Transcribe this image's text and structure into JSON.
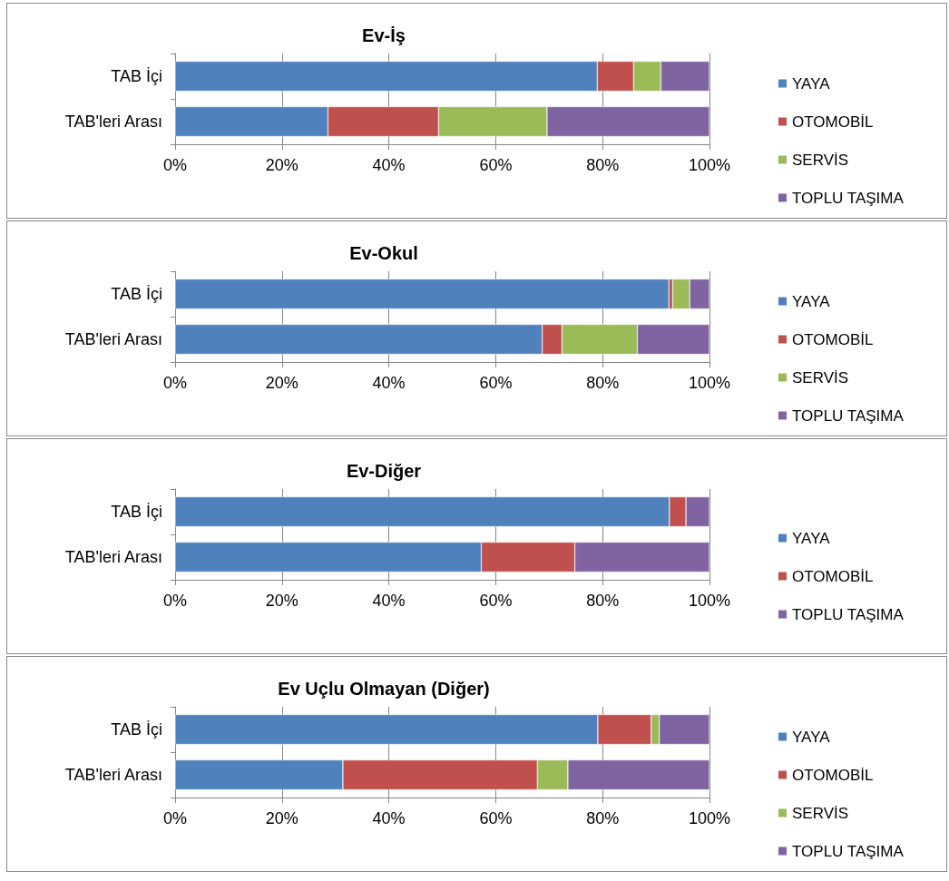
{
  "chart_data": [
    {
      "type": "bar",
      "orientation": "horizontal",
      "stacked": true,
      "title": "Ev-İş",
      "categories": [
        "TAB İçi",
        "TAB'leri Arası"
      ],
      "xlim": [
        0,
        100
      ],
      "xticks": [
        {
          "value": 0,
          "label": "0%"
        },
        {
          "value": 20,
          "label": "20%"
        },
        {
          "value": 40,
          "label": "40%"
        },
        {
          "value": 60,
          "label": "60%"
        },
        {
          "value": 80,
          "label": "80%"
        },
        {
          "value": 100,
          "label": "100%"
        }
      ],
      "grid": "x",
      "legend": "right",
      "series": [
        {
          "name": "YAYA",
          "color": "#4f81bd",
          "values": [
            79.0,
            28.6
          ]
        },
        {
          "name": "OTOMOBİL",
          "color": "#c0504d",
          "values": [
            6.8,
            20.7
          ]
        },
        {
          "name": "SERVİS",
          "color": "#9bbb59",
          "values": [
            5.1,
            20.3
          ]
        },
        {
          "name": "TOPLU TAŞIMA",
          "color": "#8064a2",
          "values": [
            9.1,
            30.4
          ]
        }
      ]
    },
    {
      "type": "bar",
      "orientation": "horizontal",
      "stacked": true,
      "title": "Ev-Okul",
      "categories": [
        "TAB İçi",
        "TAB'leri Arası"
      ],
      "xlim": [
        0,
        100
      ],
      "xticks": [
        {
          "value": 0,
          "label": "0%"
        },
        {
          "value": 20,
          "label": "20%"
        },
        {
          "value": 40,
          "label": "40%"
        },
        {
          "value": 60,
          "label": "60%"
        },
        {
          "value": 80,
          "label": "80%"
        },
        {
          "value": 100,
          "label": "100%"
        }
      ],
      "grid": "x",
      "legend": "right",
      "series": [
        {
          "name": "YAYA",
          "color": "#4f81bd",
          "values": [
            92.4,
            68.7
          ]
        },
        {
          "name": "OTOMOBİL",
          "color": "#c0504d",
          "values": [
            0.7,
            3.7
          ]
        },
        {
          "name": "SERVİS",
          "color": "#9bbb59",
          "values": [
            3.2,
            14.1
          ]
        },
        {
          "name": "TOPLU TAŞIMA",
          "color": "#8064a2",
          "values": [
            3.7,
            13.5
          ]
        }
      ]
    },
    {
      "type": "bar",
      "orientation": "horizontal",
      "stacked": true,
      "title": "Ev-Diğer",
      "categories": [
        "TAB İçi",
        "TAB'leri Arası"
      ],
      "xlim": [
        0,
        100
      ],
      "xticks": [
        {
          "value": 0,
          "label": "0%"
        },
        {
          "value": 20,
          "label": "20%"
        },
        {
          "value": 40,
          "label": "40%"
        },
        {
          "value": 60,
          "label": "60%"
        },
        {
          "value": 80,
          "label": "80%"
        },
        {
          "value": 100,
          "label": "100%"
        }
      ],
      "grid": "x",
      "legend": "right",
      "series": [
        {
          "name": "YAYA",
          "color": "#4f81bd",
          "values": [
            92.5,
            57.3
          ]
        },
        {
          "name": "OTOMOBİL",
          "color": "#c0504d",
          "values": [
            3.1,
            17.5
          ]
        },
        {
          "name": "TOPLU TAŞIMA",
          "color": "#8064a2",
          "values": [
            4.4,
            25.2
          ]
        }
      ]
    },
    {
      "type": "bar",
      "orientation": "horizontal",
      "stacked": true,
      "title": "Ev Uçlu Olmayan (Diğer)",
      "categories": [
        "TAB İçi",
        "TAB'leri Arası"
      ],
      "xlim": [
        0,
        100
      ],
      "xticks": [
        {
          "value": 0,
          "label": "0%"
        },
        {
          "value": 20,
          "label": "20%"
        },
        {
          "value": 40,
          "label": "40%"
        },
        {
          "value": 60,
          "label": "60%"
        },
        {
          "value": 80,
          "label": "80%"
        },
        {
          "value": 100,
          "label": "100%"
        }
      ],
      "grid": "x",
      "legend": "right",
      "series": [
        {
          "name": "YAYA",
          "color": "#4f81bd",
          "values": [
            79.1,
            31.4
          ]
        },
        {
          "name": "OTOMOBİL",
          "color": "#c0504d",
          "values": [
            10.0,
            36.4
          ]
        },
        {
          "name": "SERVİS",
          "color": "#9bbb59",
          "values": [
            1.5,
            5.7
          ]
        },
        {
          "name": "TOPLU TAŞIMA",
          "color": "#8064a2",
          "values": [
            9.4,
            26.5
          ]
        }
      ]
    }
  ]
}
